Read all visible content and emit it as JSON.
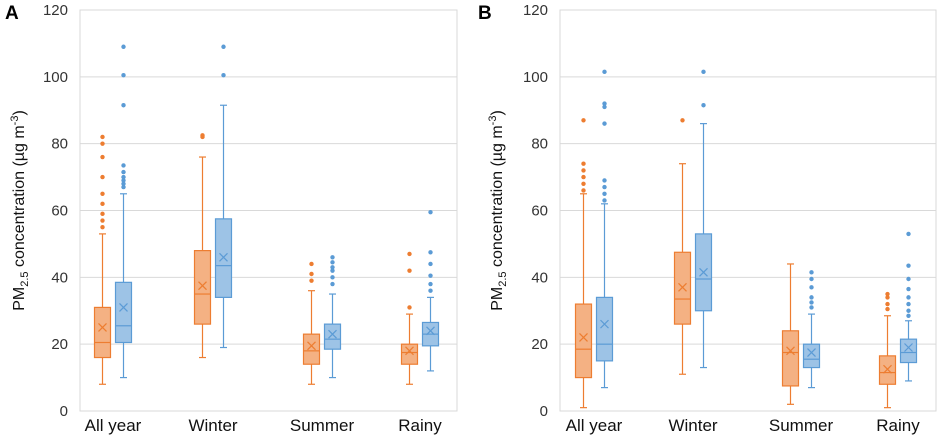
{
  "colors": {
    "orange": "#ED7D31",
    "orange_fill": "#F4B183",
    "blue": "#5B9BD5",
    "blue_fill": "#9DC3E6",
    "grid": "#D9D9D9"
  },
  "chart_data": [
    {
      "type": "box",
      "panel": "A",
      "ylabel_main": "PM",
      "ylabel_sub": "2.5",
      "ylabel_rest": " concentration (µg m",
      "ylabel_sup": "-3",
      "ylabel_end": ")",
      "ylim": [
        0,
        120
      ],
      "yticks": [
        "0",
        "20",
        "40",
        "60",
        "80",
        "100",
        "120"
      ],
      "grid": true,
      "categories": [
        "All year",
        "Winter",
        "Summer",
        "Rainy"
      ],
      "series": [
        {
          "name": "series-1",
          "color": "orange",
          "boxes": [
            {
              "whislo": 8,
              "q1": 16,
              "med": 20.5,
              "q3": 31,
              "whishi": 53,
              "mean": 25,
              "fliers": [
                55,
                57,
                59,
                62,
                65,
                70,
                76,
                80,
                82
              ]
            },
            {
              "whislo": 16,
              "q1": 26,
              "med": 35,
              "q3": 48,
              "whishi": 76,
              "mean": 37.5,
              "fliers": [
                82,
                82.5
              ]
            },
            {
              "whislo": 8,
              "q1": 14,
              "med": 18,
              "q3": 23,
              "whishi": 36,
              "mean": 19.5,
              "fliers": [
                39,
                41,
                44
              ]
            },
            {
              "whislo": 8,
              "q1": 14,
              "med": 17.5,
              "q3": 20,
              "whishi": 29,
              "mean": 18,
              "fliers": [
                31,
                42,
                47
              ]
            }
          ]
        },
        {
          "name": "series-2",
          "color": "blue",
          "boxes": [
            {
              "whislo": 10,
              "q1": 20.5,
              "med": 25.5,
              "q3": 38.5,
              "whishi": 65,
              "mean": 31,
              "fliers": [
                67,
                68,
                69,
                70,
                71.5,
                73.5,
                91.5,
                100.5,
                109
              ]
            },
            {
              "whislo": 19,
              "q1": 34,
              "med": 43.5,
              "q3": 57.5,
              "whishi": 91.5,
              "mean": 46,
              "fliers": [
                100.5,
                109
              ]
            },
            {
              "whislo": 10,
              "q1": 18.5,
              "med": 21.5,
              "q3": 26,
              "whishi": 35,
              "mean": 23,
              "fliers": [
                38,
                40,
                42,
                43,
                44.5,
                46
              ]
            },
            {
              "whislo": 12,
              "q1": 19.5,
              "med": 23,
              "q3": 26.5,
              "whishi": 34,
              "mean": 24,
              "fliers": [
                36,
                38,
                40.5,
                44,
                47.5,
                59.5
              ]
            }
          ]
        }
      ]
    },
    {
      "type": "box",
      "panel": "B",
      "ylabel_main": "PM",
      "ylabel_sub": "2.5",
      "ylabel_rest": " concentration (µg m",
      "ylabel_sup": "-3",
      "ylabel_end": ")",
      "ylim": [
        0,
        120
      ],
      "yticks": [
        "0",
        "20",
        "40",
        "60",
        "80",
        "100",
        "120"
      ],
      "grid": true,
      "categories": [
        "All year",
        "Winter",
        "Summer",
        "Rainy"
      ],
      "series": [
        {
          "name": "series-1",
          "color": "orange",
          "boxes": [
            {
              "whislo": 1,
              "q1": 10,
              "med": 18.5,
              "q3": 32,
              "whishi": 65,
              "mean": 22,
              "fliers": [
                66,
                68,
                70,
                72,
                74,
                87
              ]
            },
            {
              "whislo": 11,
              "q1": 26,
              "med": 33.5,
              "q3": 47.5,
              "whishi": 74,
              "mean": 37,
              "fliers": [
                87
              ]
            },
            {
              "whislo": 2,
              "q1": 7.5,
              "med": 17.5,
              "q3": 24,
              "whishi": 44,
              "mean": 18,
              "fliers": []
            },
            {
              "whislo": 1,
              "q1": 8,
              "med": 11.5,
              "q3": 16.5,
              "whishi": 28.5,
              "mean": 12.5,
              "fliers": [
                30.5,
                32,
                34,
                35
              ]
            }
          ]
        },
        {
          "name": "series-2",
          "color": "blue",
          "boxes": [
            {
              "whislo": 7,
              "q1": 15,
              "med": 20,
              "q3": 34,
              "whishi": 62,
              "mean": 26,
              "fliers": [
                63,
                65,
                67,
                69,
                86,
                91,
                92,
                101.5
              ]
            },
            {
              "whislo": 13,
              "q1": 30,
              "med": 39.5,
              "q3": 53,
              "whishi": 86,
              "mean": 41.5,
              "fliers": [
                91.5,
                101.5
              ]
            },
            {
              "whislo": 7,
              "q1": 13,
              "med": 15.5,
              "q3": 20,
              "whishi": 29,
              "mean": 17.5,
              "fliers": [
                31,
                32.5,
                34,
                37,
                39.5,
                41.5
              ]
            },
            {
              "whislo": 9,
              "q1": 14.5,
              "med": 17.5,
              "q3": 21.5,
              "whishi": 27,
              "mean": 19,
              "fliers": [
                28.5,
                30,
                32,
                34,
                36.5,
                39.5,
                43.5,
                53
              ]
            }
          ]
        }
      ]
    }
  ]
}
